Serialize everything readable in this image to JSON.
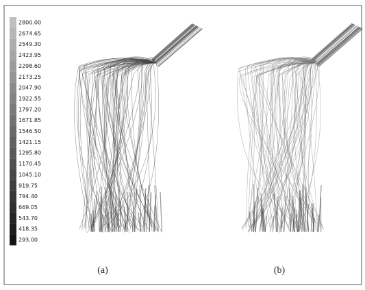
{
  "legend": {
    "labels": [
      "2800.00",
      "2674.65",
      "2549.30",
      "2423.95",
      "2298.60",
      "2173.25",
      "2047.90",
      "1922.55",
      "1797.20",
      "1671.85",
      "1546.50",
      "1421.15",
      "1295.80",
      "1170.45",
      "1045.10",
      "919.75",
      "794.40",
      "669.05",
      "543.70",
      "418.35",
      "293.00"
    ]
  },
  "panels": [
    {
      "label": "(a)"
    },
    {
      "label": "(b)"
    }
  ]
}
